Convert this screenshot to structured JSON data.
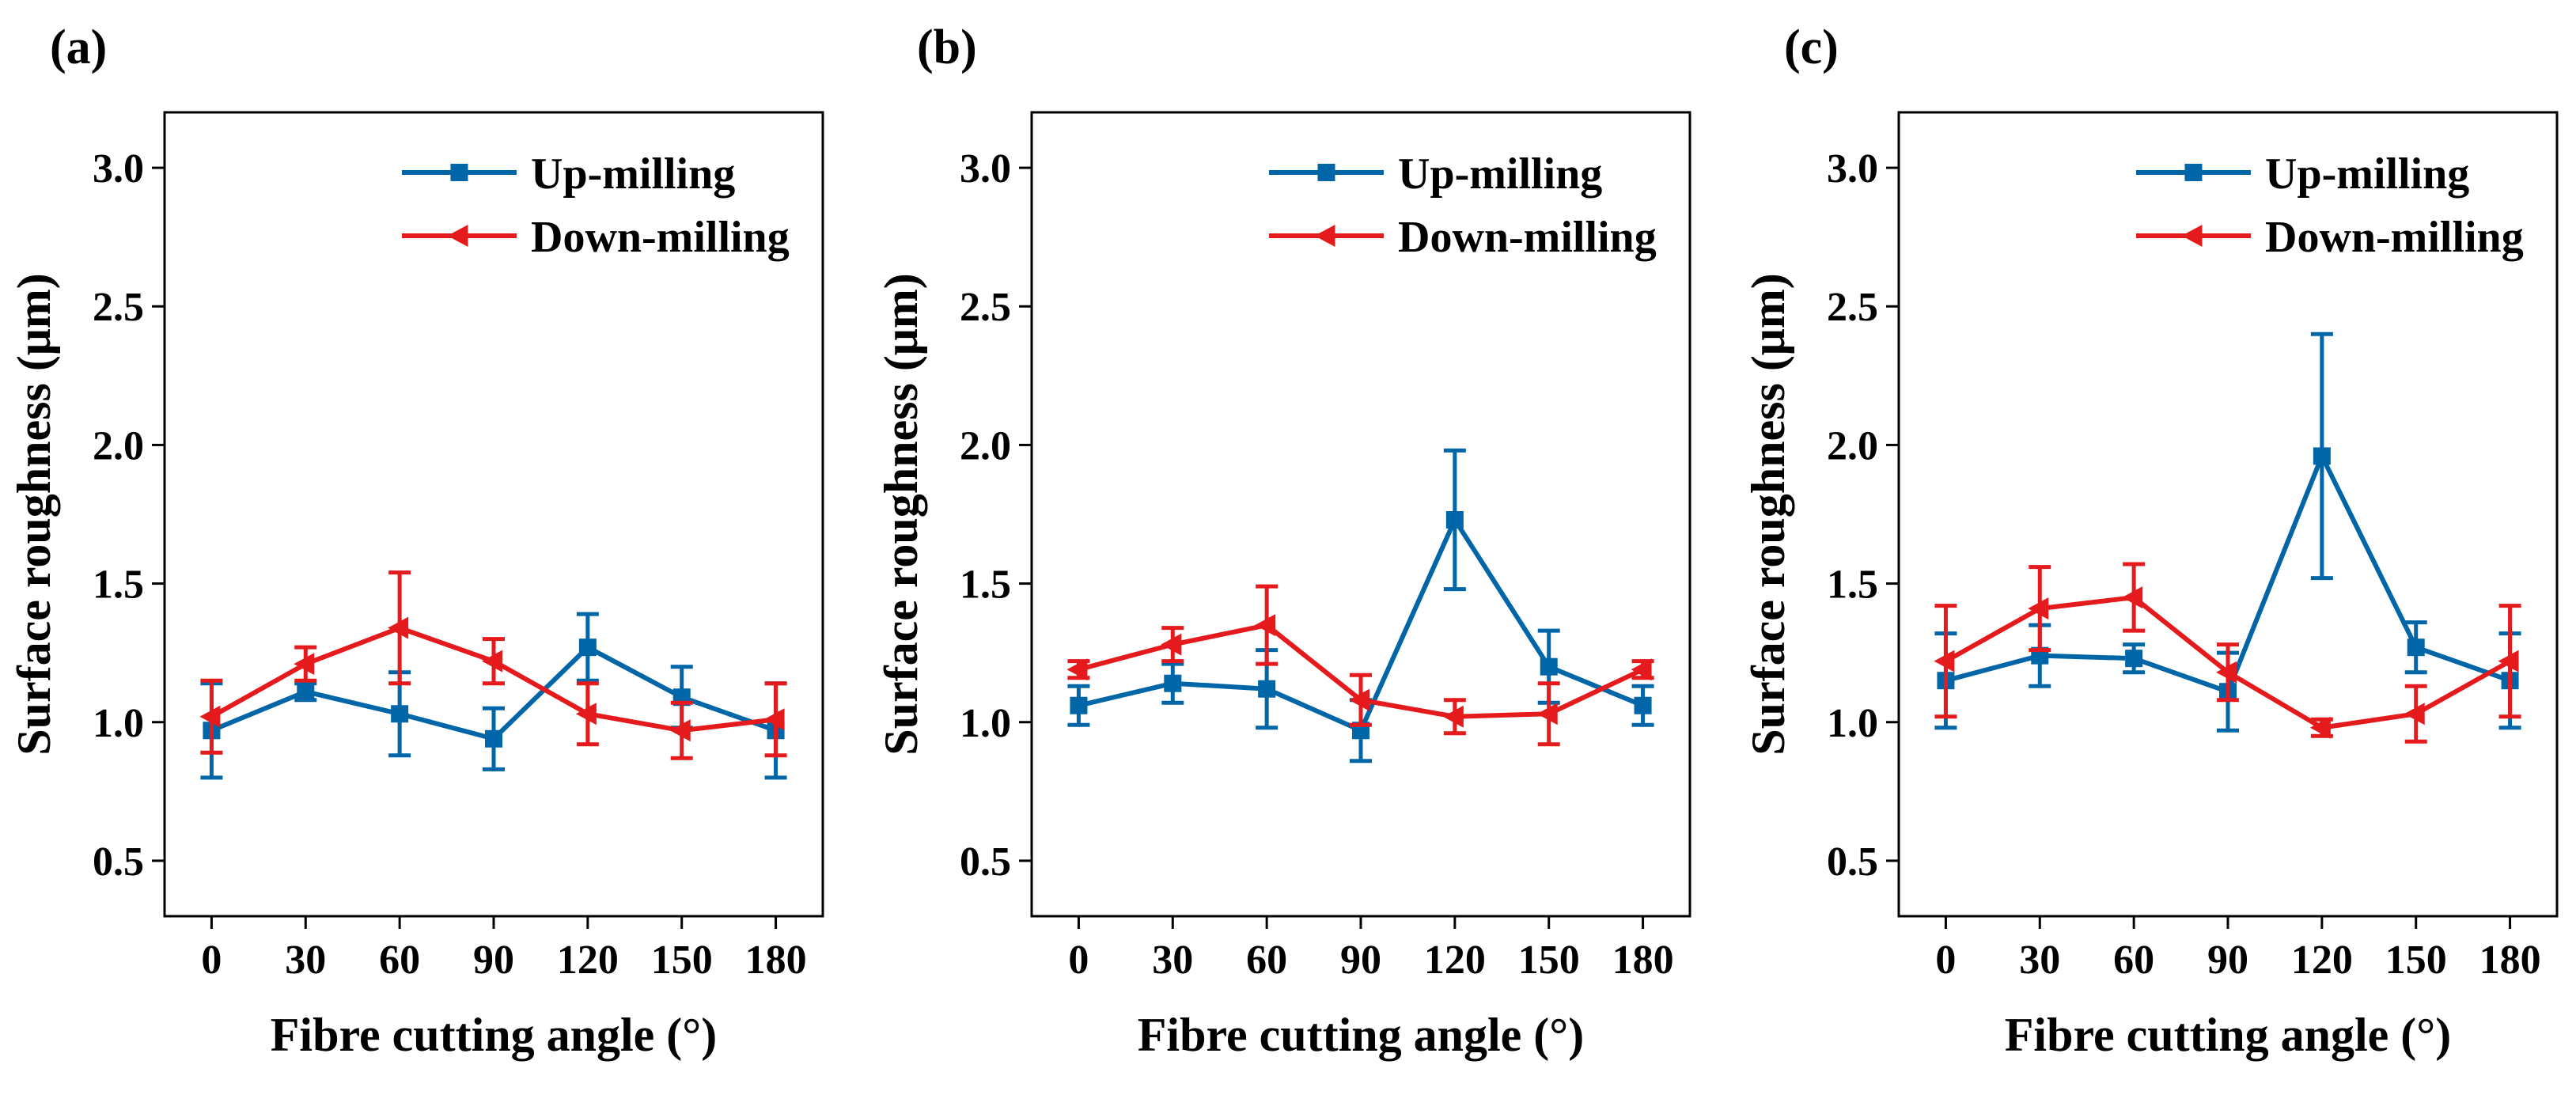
{
  "chart_data": [
    {
      "panel_label": "(a)",
      "type": "line",
      "x": [
        0,
        30,
        60,
        90,
        120,
        150,
        180
      ],
      "xlabel": "Fibre cutting angle (°)",
      "ylabel": "Surface roughness (μm)",
      "xlim": [
        -15,
        195
      ],
      "ylim": [
        0.3,
        3.2
      ],
      "xticks": [
        0,
        30,
        60,
        90,
        120,
        150,
        180
      ],
      "xtick_labels": [
        "0",
        "30",
        "60",
        "90",
        "120",
        "150",
        "180"
      ],
      "yticks": [
        0.5,
        1.0,
        1.5,
        2.0,
        2.5,
        3.0
      ],
      "ytick_labels": [
        "0.5",
        "1.0",
        "1.5",
        "2.0",
        "2.5",
        "3.0"
      ],
      "legend_position": "top-right",
      "series": [
        {
          "name": "Up-milling",
          "color": "#0066a8",
          "marker": "square",
          "values": [
            0.97,
            1.11,
            1.03,
            0.94,
            1.27,
            1.09,
            0.97
          ],
          "errors": [
            0.17,
            0.03,
            0.15,
            0.11,
            0.12,
            0.11,
            0.17
          ]
        },
        {
          "name": "Down-milling",
          "color": "#e41a1c",
          "marker": "triangle-left",
          "values": [
            1.02,
            1.21,
            1.34,
            1.22,
            1.03,
            0.97,
            1.01
          ],
          "errors": [
            0.13,
            0.06,
            0.2,
            0.08,
            0.11,
            0.1,
            0.13
          ]
        }
      ]
    },
    {
      "panel_label": "(b)",
      "type": "line",
      "x": [
        0,
        30,
        60,
        90,
        120,
        150,
        180
      ],
      "xlabel": "Fibre cutting angle (°)",
      "ylabel": "Surface roughness (μm)",
      "xlim": [
        -15,
        195
      ],
      "ylim": [
        0.3,
        3.2
      ],
      "xticks": [
        0,
        30,
        60,
        90,
        120,
        150,
        180
      ],
      "xtick_labels": [
        "0",
        "30",
        "60",
        "90",
        "120",
        "150",
        "180"
      ],
      "yticks": [
        0.5,
        1.0,
        1.5,
        2.0,
        2.5,
        3.0
      ],
      "ytick_labels": [
        "0.5",
        "1.0",
        "1.5",
        "2.0",
        "2.5",
        "3.0"
      ],
      "legend_position": "top-right",
      "series": [
        {
          "name": "Up-milling",
          "color": "#0066a8",
          "marker": "square",
          "values": [
            1.06,
            1.14,
            1.12,
            0.97,
            1.73,
            1.2,
            1.06
          ],
          "errors": [
            0.07,
            0.07,
            0.14,
            0.11,
            0.25,
            0.13,
            0.07
          ]
        },
        {
          "name": "Down-milling",
          "color": "#e41a1c",
          "marker": "triangle-left",
          "values": [
            1.19,
            1.28,
            1.35,
            1.08,
            1.02,
            1.03,
            1.19
          ],
          "errors": [
            0.03,
            0.06,
            0.14,
            0.09,
            0.06,
            0.11,
            0.03
          ]
        }
      ]
    },
    {
      "panel_label": "(c)",
      "type": "line",
      "x": [
        0,
        30,
        60,
        90,
        120,
        150,
        180
      ],
      "xlabel": "Fibre cutting angle (°)",
      "ylabel": "Surface roughness (μm)",
      "xlim": [
        -15,
        195
      ],
      "ylim": [
        0.3,
        3.2
      ],
      "xticks": [
        0,
        30,
        60,
        90,
        120,
        150,
        180
      ],
      "xtick_labels": [
        "0",
        "30",
        "60",
        "90",
        "120",
        "150",
        "180"
      ],
      "yticks": [
        0.5,
        1.0,
        1.5,
        2.0,
        2.5,
        3.0
      ],
      "ytick_labels": [
        "0.5",
        "1.0",
        "1.5",
        "2.0",
        "2.5",
        "3.0"
      ],
      "legend_position": "top-right",
      "series": [
        {
          "name": "Up-milling",
          "color": "#0066a8",
          "marker": "square",
          "values": [
            1.15,
            1.24,
            1.23,
            1.11,
            1.96,
            1.27,
            1.15
          ],
          "errors": [
            0.17,
            0.11,
            0.05,
            0.14,
            0.44,
            0.09,
            0.17
          ]
        },
        {
          "name": "Down-milling",
          "color": "#e41a1c",
          "marker": "triangle-left",
          "values": [
            1.22,
            1.41,
            1.45,
            1.18,
            0.98,
            1.03,
            1.22
          ],
          "errors": [
            0.2,
            0.15,
            0.12,
            0.1,
            0.03,
            0.1,
            0.2
          ]
        }
      ]
    }
  ]
}
